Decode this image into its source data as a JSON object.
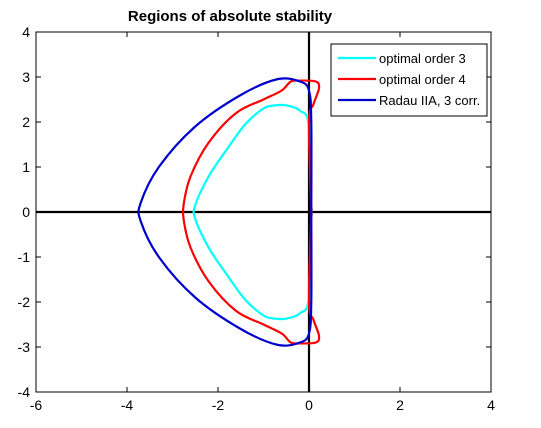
{
  "chart_data": {
    "type": "line",
    "title": "Regions of absolute stability",
    "xlabel": "",
    "ylabel": "",
    "xlim": [
      -6,
      4
    ],
    "ylim": [
      -4,
      4
    ],
    "xticks": [
      -6,
      -4,
      -2,
      0,
      2,
      4
    ],
    "yticks": [
      4,
      3,
      2,
      1,
      0,
      -1,
      -2,
      -3,
      -4
    ],
    "grid": false,
    "legend_position": "top-right",
    "axes_lines": {
      "x": 0,
      "y": 0,
      "color": "#000000"
    },
    "series": [
      {
        "name": "optimal order 3",
        "color": "#00ffff",
        "x": [
          0.05,
          0.0,
          -0.2,
          -0.5,
          -0.75,
          -1.0,
          -1.4,
          -1.8,
          -2.2,
          -2.5,
          -2.5,
          -2.2,
          -1.8,
          -1.4,
          -1.0,
          -0.75,
          -0.5,
          -0.2,
          0.0,
          0.05
        ],
        "y": [
          0.0,
          1.9,
          2.25,
          2.37,
          2.37,
          2.3,
          1.95,
          1.4,
          0.8,
          0.15,
          -0.15,
          -0.8,
          -1.4,
          -1.95,
          -2.3,
          -2.37,
          -2.37,
          -2.25,
          -1.9,
          0.0
        ]
      },
      {
        "name": "optimal order 4",
        "color": "#ff0000",
        "x": [
          0.05,
          0.0,
          0.1,
          0.22,
          0.15,
          -0.2,
          -0.4,
          -0.6,
          -1.0,
          -1.6,
          -2.2,
          -2.6,
          -2.75,
          -2.75,
          -2.6,
          -2.2,
          -1.6,
          -1.0,
          -0.6,
          -0.4,
          -0.2,
          0.15,
          0.22,
          0.1,
          0.0,
          0.05
        ],
        "y": [
          0.0,
          2.0,
          2.4,
          2.75,
          2.9,
          2.92,
          2.9,
          2.7,
          2.5,
          2.2,
          1.55,
          0.8,
          0.2,
          -0.2,
          -0.8,
          -1.55,
          -2.2,
          -2.5,
          -2.7,
          -2.9,
          -2.92,
          -2.9,
          -2.75,
          -2.4,
          -2.0,
          0.0
        ]
      },
      {
        "name": "Radau IIA, 3 corr.",
        "color": "#0000cd",
        "x": [
          0.05,
          0.05,
          0.0,
          -0.2,
          -0.7,
          -1.5,
          -2.5,
          -3.3,
          -3.7,
          -3.7,
          -3.3,
          -2.5,
          -1.5,
          -0.7,
          -0.2,
          0.0,
          0.05,
          0.05
        ],
        "y": [
          0.0,
          2.0,
          2.7,
          2.9,
          2.95,
          2.6,
          1.9,
          1.0,
          0.2,
          -0.2,
          -1.0,
          -1.9,
          -2.6,
          -2.95,
          -2.9,
          -2.7,
          -2.0,
          0.0
        ]
      }
    ]
  }
}
